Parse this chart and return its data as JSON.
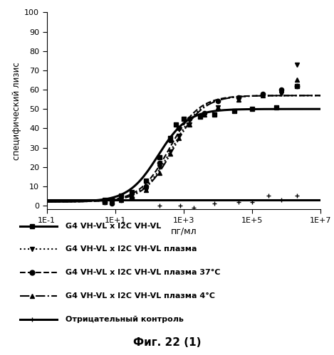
{
  "xlabel": "пг/мл",
  "ylabel": "специфический лизис",
  "caption": "Фиг. 22 (1)",
  "xlim": [
    0.1,
    10000000.0
  ],
  "ylim": [
    -2,
    100
  ],
  "yticks": [
    0,
    10,
    20,
    30,
    40,
    50,
    60,
    70,
    80,
    90,
    100
  ],
  "xticks": [
    0.1,
    10,
    1000,
    100000,
    10000000
  ],
  "xtick_labels": [
    "1E-1",
    "1E+1",
    "1E+3",
    "1E+5",
    "1E+7"
  ],
  "series": [
    {
      "name": "G4 VH-VL x I2C VH-VL",
      "marker": "s",
      "linestyle": "-",
      "linewidth": 2.2,
      "color": "#000000",
      "markersize": 4.5,
      "ec50": 180,
      "top": 50,
      "bottom": 2,
      "hill": 1.0,
      "scatter_x": [
        5,
        8,
        15,
        30,
        80,
        200,
        400,
        600,
        1000,
        3000,
        8000,
        30000,
        100000,
        500000,
        2000000
      ],
      "scatter_y": [
        2,
        3,
        5,
        7,
        13,
        25,
        35,
        42,
        45,
        46,
        47,
        49,
        50,
        51,
        62
      ]
    },
    {
      "name": "G4 VH-VL x I2C VH-VL плазма",
      "marker": "v",
      "linestyle": ":",
      "linewidth": 1.5,
      "color": "#000000",
      "markersize": 4.5,
      "ec50": 450,
      "top": 57,
      "bottom": 2,
      "hill": 1.0,
      "scatter_x": [
        5,
        8,
        15,
        30,
        80,
        200,
        400,
        700,
        1500,
        4000,
        10000,
        40000,
        200000,
        700000,
        2000000
      ],
      "scatter_y": [
        3,
        2,
        4,
        5,
        8,
        20,
        28,
        36,
        42,
        47,
        51,
        55,
        57,
        58,
        73
      ]
    },
    {
      "name": "G4 VH-VL x I2C VH-VL плазма 37°C",
      "marker": "o",
      "linestyle": "--",
      "linewidth": 1.5,
      "color": "#000000",
      "markersize": 4.5,
      "ec50": 380,
      "top": 57,
      "bottom": 2,
      "hill": 1.0,
      "scatter_x": [
        5,
        8,
        15,
        30,
        80,
        200,
        400,
        700,
        1500,
        4000,
        10000,
        40000,
        200000,
        700000,
        2000000
      ],
      "scatter_y": [
        2,
        1,
        3,
        4,
        10,
        22,
        34,
        40,
        45,
        48,
        54,
        56,
        58,
        60,
        62
      ]
    },
    {
      "name": "G4 VH-VL x I2C VH-VL плазма 4°C",
      "marker": "^",
      "linestyle": "-.",
      "linewidth": 1.5,
      "color": "#000000",
      "markersize": 4.5,
      "ec50": 500,
      "top": 57,
      "bottom": 2,
      "hill": 1.0,
      "scatter_x": [
        5,
        8,
        15,
        30,
        80,
        200,
        400,
        700,
        1500,
        4000,
        10000,
        40000,
        200000,
        700000,
        2000000
      ],
      "scatter_y": [
        3,
        2,
        3,
        4,
        8,
        17,
        27,
        35,
        42,
        47,
        51,
        55,
        57,
        60,
        65
      ]
    },
    {
      "name": "Отрицательный контроль",
      "marker": "+",
      "linestyle": "-",
      "linewidth": 2.2,
      "color": "#000000",
      "markersize": 5,
      "ec50": null,
      "flat_val": 3.0,
      "scatter_x": [
        200,
        800,
        2000,
        8000,
        40000,
        100000,
        300000,
        700000,
        2000000
      ],
      "scatter_y": [
        0,
        0,
        -1,
        1,
        2,
        2,
        5,
        3,
        5
      ]
    }
  ],
  "legend_items": [
    {
      "label": "G4 VH-VL x I2C VH-VL",
      "marker": "s",
      "linestyle": "-",
      "linewidth": 2.2
    },
    {
      "label": "G4 VH-VL x I2C VH-VL плазма",
      "marker": "v",
      "linestyle": ":",
      "linewidth": 1.5
    },
    {
      "label": "G4 VH-VL x I2C VH-VL плазма 37°C",
      "marker": "o",
      "linestyle": "--",
      "linewidth": 1.5
    },
    {
      "label": "G4 VH-VL x I2C VH-VL плазма 4°C",
      "marker": "^",
      "linestyle": "-.",
      "linewidth": 1.5
    },
    {
      "label": "Отрицательный контроль",
      "marker": "+",
      "linestyle": "-",
      "linewidth": 2.2
    }
  ],
  "background_color": "#ffffff",
  "figsize": [
    4.69,
    4.99
  ],
  "dpi": 100
}
